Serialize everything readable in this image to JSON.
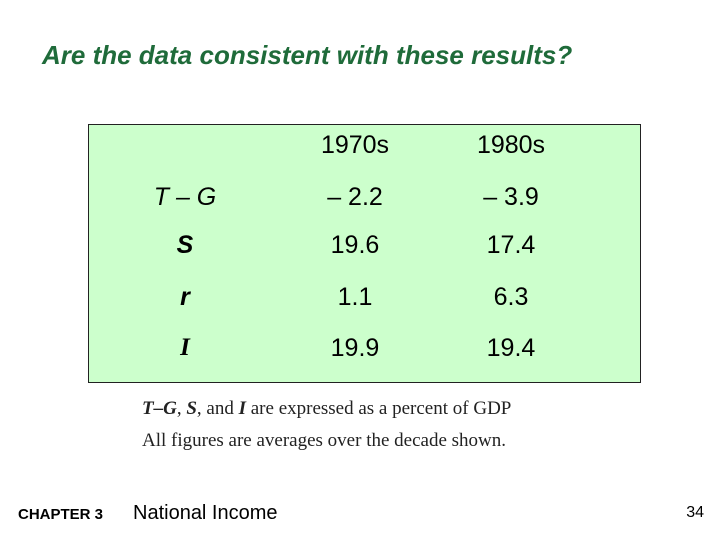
{
  "slide": {
    "title": "Are the data consistent with these results?",
    "table": {
      "columns": [
        "1970s",
        "1980s"
      ],
      "rows": [
        {
          "label": "T – G",
          "v1970": "– 2.2",
          "v1980": "– 3.9"
        },
        {
          "label": "S",
          "v1970": "19.6",
          "v1980": "17.4"
        },
        {
          "label": "r",
          "v1970": "1.1",
          "v1980": "6.3"
        },
        {
          "label": "I",
          "v1970": "19.9",
          "v1980": "19.4"
        }
      ]
    },
    "notes": {
      "line1_tg": "T–G",
      "line1_sep1": ", ",
      "line1_s": "S",
      "line1_sep2": ", and ",
      "line1_i": "I",
      "line1_rest": " are expressed as a percent of GDP",
      "line2": "All figures are averages over the decade shown."
    },
    "footer": {
      "chapter": "CHAPTER 3",
      "title": "National Income",
      "page": "34"
    },
    "colors": {
      "title": "#1f6b3a",
      "table_bg": "#ccffcc"
    }
  }
}
